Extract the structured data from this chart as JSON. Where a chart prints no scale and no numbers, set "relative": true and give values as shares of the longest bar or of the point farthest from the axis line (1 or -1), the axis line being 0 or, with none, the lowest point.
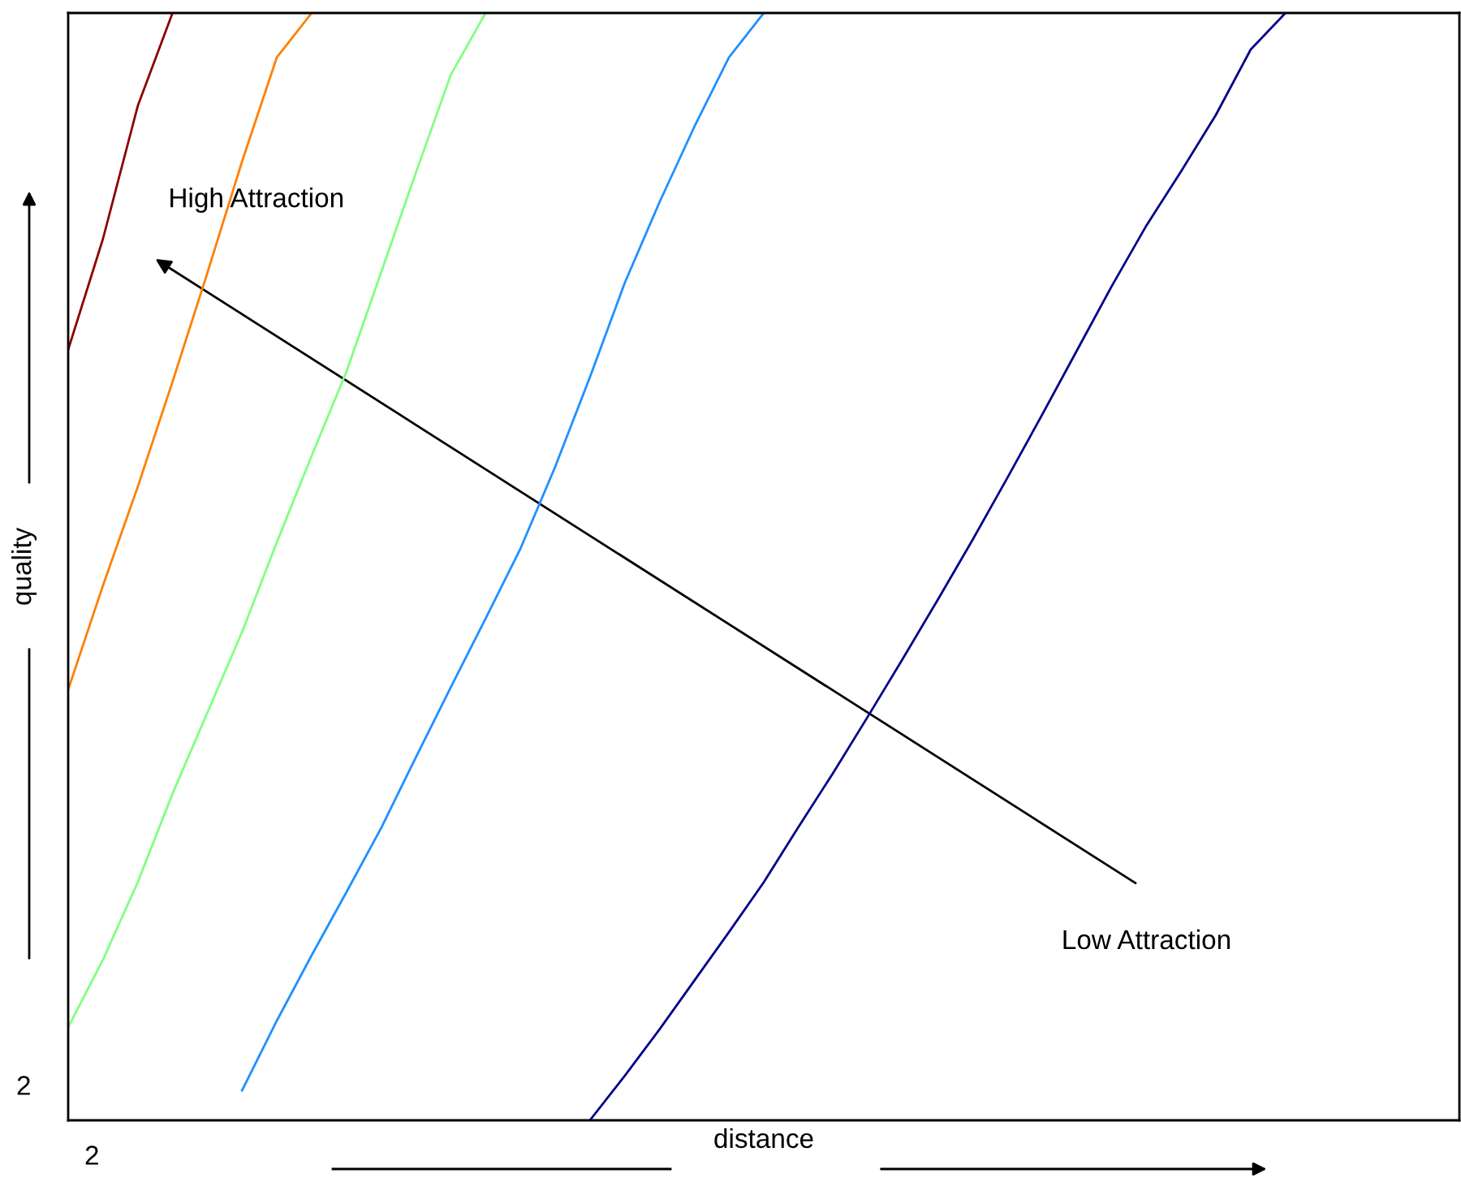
{
  "chart_data": {
    "type": "line",
    "relative": true,
    "xlabel": "distance",
    "ylabel": "quality",
    "annotations": [
      "High Attraction",
      "Low Attraction",
      "2",
      "2"
    ],
    "categories": [
      null,
      null,
      null,
      null,
      null,
      null,
      null,
      null,
      null,
      null,
      null,
      null,
      null,
      null,
      null,
      null,
      null,
      null,
      null,
      null,
      null,
      null,
      null,
      null,
      null,
      null,
      null,
      null,
      null,
      null,
      null,
      null,
      null,
      null,
      null,
      null,
      null,
      null,
      null,
      null,
      null
    ],
    "series": [
      {
        "color": "#8b0000",
        "values": [
          0.696,
          0.796,
          0.916,
          1,
          null,
          null,
          null,
          null,
          null,
          null,
          null,
          null,
          null,
          null,
          null,
          null,
          null,
          null,
          null,
          null,
          null,
          null,
          null,
          null,
          null,
          null,
          null,
          null,
          null,
          null,
          null,
          null,
          null,
          null,
          null,
          null,
          null,
          null,
          null,
          null,
          null
        ]
      },
      {
        "color": "#ff8000",
        "values": [
          0.389,
          0.483,
          0.572,
          0.667,
          0.765,
          0.866,
          0.96,
          1,
          null,
          null,
          null,
          null,
          null,
          null,
          null,
          null,
          null,
          null,
          null,
          null,
          null,
          null,
          null,
          null,
          null,
          null,
          null,
          null,
          null,
          null,
          null,
          null,
          null,
          null,
          null,
          null,
          null,
          null,
          null,
          null,
          null
        ]
      },
      {
        "color": "#80ff80",
        "values": [
          0.084,
          0.145,
          0.215,
          0.295,
          0.368,
          0.441,
          0.522,
          0.6,
          0.676,
          0.766,
          0.856,
          0.944,
          1,
          null,
          null,
          null,
          null,
          null,
          null,
          null,
          null,
          null,
          null,
          null,
          null,
          null,
          null,
          null,
          null,
          null,
          null,
          null,
          null,
          null,
          null,
          null,
          null,
          null,
          null,
          null,
          null
        ]
      },
      {
        "color": "#1e90ff",
        "values": [
          null,
          null,
          null,
          null,
          null,
          0.027,
          0.09,
          0.149,
          0.206,
          0.264,
          0.328,
          0.391,
          0.453,
          0.516,
          0.59,
          0.671,
          0.756,
          0.829,
          0.897,
          0.96,
          1,
          null,
          null,
          null,
          null,
          null,
          null,
          null,
          null,
          null,
          null,
          null,
          null,
          null,
          null,
          null,
          null,
          null,
          null,
          null,
          null
        ]
      },
      {
        "color": "#00008b",
        "values": [
          null,
          null,
          null,
          null,
          null,
          null,
          null,
          null,
          null,
          null,
          null,
          null,
          null,
          null,
          null,
          0,
          0.04,
          0.082,
          0.126,
          0.17,
          0.215,
          0.265,
          0.314,
          0.365,
          0.417,
          0.47,
          0.524,
          0.58,
          0.637,
          0.695,
          0.753,
          0.808,
          0.857,
          0.908,
          0.967,
          1,
          null,
          null,
          null,
          null,
          null
        ]
      }
    ]
  }
}
